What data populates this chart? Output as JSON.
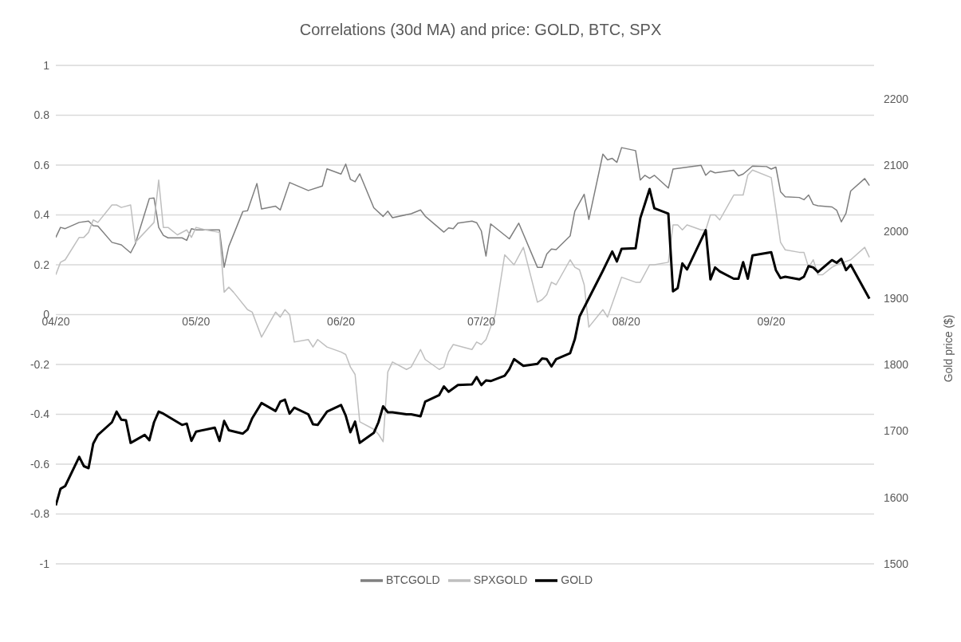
{
  "chart_data": {
    "type": "line",
    "title": "Correlations (30d MA) and price: GOLD, BTC, SPX",
    "y2label": "Gold price ($)",
    "xlim": [
      "2020-04-01",
      "2020-09-23"
    ],
    "xticks": [
      {
        "value": "2020-04-01",
        "label": "04/20"
      },
      {
        "value": "2020-05-01",
        "label": "05/20"
      },
      {
        "value": "2020-06-01",
        "label": "06/20"
      },
      {
        "value": "2020-07-01",
        "label": "07/20"
      },
      {
        "value": "2020-08-01",
        "label": "08/20"
      },
      {
        "value": "2020-09-01",
        "label": "09/20"
      }
    ],
    "ylim": [
      -1,
      1
    ],
    "yticks": [
      -1,
      -0.8,
      -0.6,
      -0.4,
      -0.2,
      0,
      0.2,
      0.4,
      0.6,
      0.8,
      1
    ],
    "y2lim": [
      1500,
      2250
    ],
    "y2ticks": [
      1500,
      1600,
      1700,
      1800,
      1900,
      2000,
      2100,
      2200
    ],
    "grid": "y",
    "legend": "bottom",
    "marker": "none",
    "line_style": "solid",
    "series": [
      {
        "name": "BTCGOLD",
        "color": "#7f7f7f",
        "x": [
          "2020-04-01",
          "2020-04-02",
          "2020-04-03",
          "2020-04-06",
          "2020-04-08",
          "2020-04-09",
          "2020-04-10",
          "2020-04-13",
          "2020-04-15",
          "2020-04-17",
          "2020-04-18",
          "2020-04-21",
          "2020-04-22",
          "2020-04-23",
          "2020-04-24",
          "2020-04-25",
          "2020-04-28",
          "2020-04-29",
          "2020-04-30",
          "2020-05-01",
          "2020-05-06",
          "2020-05-07",
          "2020-05-08",
          "2020-05-11",
          "2020-05-12",
          "2020-05-14",
          "2020-05-15",
          "2020-05-18",
          "2020-05-19",
          "2020-05-21",
          "2020-05-25",
          "2020-05-28",
          "2020-05-29",
          "2020-06-01",
          "2020-06-02",
          "2020-06-03",
          "2020-06-04",
          "2020-06-05",
          "2020-06-08",
          "2020-06-10",
          "2020-06-11",
          "2020-06-12",
          "2020-06-16",
          "2020-06-18",
          "2020-06-19",
          "2020-06-23",
          "2020-06-24",
          "2020-06-25",
          "2020-06-26",
          "2020-06-29",
          "2020-06-30",
          "2020-07-01",
          "2020-07-02",
          "2020-07-03",
          "2020-07-07",
          "2020-07-09",
          "2020-07-13",
          "2020-07-14",
          "2020-07-15",
          "2020-07-16",
          "2020-07-17",
          "2020-07-20",
          "2020-07-21",
          "2020-07-23",
          "2020-07-24",
          "2020-07-27",
          "2020-07-28",
          "2020-07-29",
          "2020-07-30",
          "2020-07-31",
          "2020-08-03",
          "2020-08-04",
          "2020-08-05",
          "2020-08-06",
          "2020-08-07",
          "2020-08-10",
          "2020-08-11",
          "2020-08-17",
          "2020-08-18",
          "2020-08-19",
          "2020-08-20",
          "2020-08-24",
          "2020-08-25",
          "2020-08-26",
          "2020-08-28",
          "2020-08-31",
          "2020-09-01",
          "2020-09-02",
          "2020-09-03",
          "2020-09-04",
          "2020-09-07",
          "2020-09-08",
          "2020-09-09",
          "2020-09-10",
          "2020-09-11",
          "2020-09-14",
          "2020-09-15",
          "2020-09-16",
          "2020-09-17",
          "2020-09-18",
          "2020-09-21",
          "2020-09-22"
        ],
        "values": [
          0.31,
          0.35,
          0.345,
          0.37,
          0.375,
          0.357,
          0.355,
          0.29,
          0.28,
          0.248,
          0.284,
          0.466,
          0.468,
          0.35,
          0.318,
          0.308,
          0.308,
          0.298,
          0.345,
          0.34,
          0.34,
          0.19,
          0.274,
          0.414,
          0.417,
          0.526,
          0.424,
          0.435,
          0.42,
          0.53,
          0.498,
          0.516,
          0.585,
          0.564,
          0.604,
          0.543,
          0.533,
          0.565,
          0.429,
          0.394,
          0.415,
          0.389,
          0.405,
          0.42,
          0.395,
          0.331,
          0.348,
          0.345,
          0.367,
          0.375,
          0.369,
          0.336,
          0.235,
          0.364,
          0.304,
          0.367,
          0.19,
          0.19,
          0.243,
          0.263,
          0.261,
          0.316,
          0.415,
          0.483,
          0.382,
          0.644,
          0.621,
          0.627,
          0.611,
          0.67,
          0.658,
          0.54,
          0.559,
          0.547,
          0.559,
          0.508,
          0.584,
          0.599,
          0.559,
          0.577,
          0.569,
          0.579,
          0.557,
          0.564,
          0.596,
          0.594,
          0.584,
          0.592,
          0.493,
          0.473,
          0.47,
          0.461,
          0.48,
          0.442,
          0.437,
          0.432,
          0.419,
          0.372,
          0.407,
          0.496,
          0.546,
          0.518
        ]
      },
      {
        "name": "SPXGOLD",
        "color": "#bfbfbf",
        "x": [
          "2020-04-01",
          "2020-04-02",
          "2020-04-03",
          "2020-04-06",
          "2020-04-07",
          "2020-04-08",
          "2020-04-09",
          "2020-04-10",
          "2020-04-13",
          "2020-04-14",
          "2020-04-15",
          "2020-04-17",
          "2020-04-18",
          "2020-04-22",
          "2020-04-23",
          "2020-04-24",
          "2020-04-25",
          "2020-04-27",
          "2020-04-29",
          "2020-04-30",
          "2020-05-01",
          "2020-05-03",
          "2020-05-06",
          "2020-05-07",
          "2020-05-08",
          "2020-05-09",
          "2020-05-12",
          "2020-05-13",
          "2020-05-15",
          "2020-05-18",
          "2020-05-19",
          "2020-05-20",
          "2020-05-21",
          "2020-05-22",
          "2020-05-25",
          "2020-05-26",
          "2020-05-27",
          "2020-05-29",
          "2020-06-01",
          "2020-06-02",
          "2020-06-03",
          "2020-06-04",
          "2020-06-05",
          "2020-06-08",
          "2020-06-09",
          "2020-06-10",
          "2020-06-11",
          "2020-06-12",
          "2020-06-15",
          "2020-06-16",
          "2020-06-18",
          "2020-06-19",
          "2020-06-22",
          "2020-06-23",
          "2020-06-24",
          "2020-06-25",
          "2020-06-29",
          "2020-06-30",
          "2020-07-01",
          "2020-07-02",
          "2020-07-04",
          "2020-07-06",
          "2020-07-08",
          "2020-07-10",
          "2020-07-13",
          "2020-07-14",
          "2020-07-15",
          "2020-07-16",
          "2020-07-17",
          "2020-07-20",
          "2020-07-21",
          "2020-07-22",
          "2020-07-23",
          "2020-07-24",
          "2020-07-27",
          "2020-07-28",
          "2020-07-31",
          "2020-08-03",
          "2020-08-04",
          "2020-08-06",
          "2020-08-07",
          "2020-08-10",
          "2020-08-11",
          "2020-08-12",
          "2020-08-13",
          "2020-08-14",
          "2020-08-17",
          "2020-08-18",
          "2020-08-19",
          "2020-08-20",
          "2020-08-21",
          "2020-08-24",
          "2020-08-26",
          "2020-08-27",
          "2020-08-28",
          "2020-09-01",
          "2020-09-03",
          "2020-09-04",
          "2020-09-07",
          "2020-09-08",
          "2020-09-09",
          "2020-09-10",
          "2020-09-11",
          "2020-09-12",
          "2020-09-14",
          "2020-09-15",
          "2020-09-18",
          "2020-09-21",
          "2020-09-22"
        ],
        "values": [
          0.16,
          0.21,
          0.22,
          0.31,
          0.31,
          0.33,
          0.38,
          0.37,
          0.44,
          0.44,
          0.43,
          0.44,
          0.29,
          0.37,
          0.54,
          0.35,
          0.35,
          0.32,
          0.34,
          0.31,
          0.35,
          0.34,
          0.33,
          0.09,
          0.11,
          0.09,
          0.02,
          0.01,
          -0.09,
          0.01,
          -0.01,
          0.02,
          0.0,
          -0.11,
          -0.1,
          -0.13,
          -0.1,
          -0.13,
          -0.15,
          -0.16,
          -0.21,
          -0.24,
          -0.43,
          -0.46,
          -0.48,
          -0.51,
          -0.23,
          -0.19,
          -0.22,
          -0.21,
          -0.14,
          -0.18,
          -0.22,
          -0.21,
          -0.15,
          -0.12,
          -0.14,
          -0.11,
          -0.12,
          -0.1,
          0.0,
          0.24,
          0.2,
          0.27,
          0.05,
          0.06,
          0.08,
          0.13,
          0.12,
          0.22,
          0.19,
          0.18,
          0.12,
          -0.05,
          0.02,
          -0.01,
          0.15,
          0.13,
          0.13,
          0.2,
          0.2,
          0.21,
          0.36,
          0.36,
          0.34,
          0.36,
          0.34,
          0.34,
          0.4,
          0.4,
          0.38,
          0.48,
          0.48,
          0.56,
          0.58,
          0.55,
          0.29,
          0.26,
          0.25,
          0.25,
          0.19,
          0.22,
          0.16,
          0.16,
          0.19,
          0.2,
          0.22,
          0.27,
          0.23
        ]
      },
      {
        "name": "GOLD",
        "color": "#000000",
        "axis": "y2",
        "x": [
          "2020-04-01",
          "2020-04-02",
          "2020-04-03",
          "2020-04-06",
          "2020-04-07",
          "2020-04-08",
          "2020-04-09",
          "2020-04-10",
          "2020-04-13",
          "2020-04-14",
          "2020-04-15",
          "2020-04-16",
          "2020-04-17",
          "2020-04-20",
          "2020-04-21",
          "2020-04-22",
          "2020-04-23",
          "2020-04-24",
          "2020-04-28",
          "2020-04-29",
          "2020-04-30",
          "2020-05-01",
          "2020-05-05",
          "2020-05-06",
          "2020-05-07",
          "2020-05-08",
          "2020-05-11",
          "2020-05-12",
          "2020-05-13",
          "2020-05-15",
          "2020-05-18",
          "2020-05-19",
          "2020-05-20",
          "2020-05-21",
          "2020-05-22",
          "2020-05-25",
          "2020-05-26",
          "2020-05-27",
          "2020-05-29",
          "2020-06-01",
          "2020-06-02",
          "2020-06-03",
          "2020-06-04",
          "2020-06-05",
          "2020-06-08",
          "2020-06-09",
          "2020-06-10",
          "2020-06-11",
          "2020-06-12",
          "2020-06-15",
          "2020-06-16",
          "2020-06-18",
          "2020-06-19",
          "2020-06-22",
          "2020-06-23",
          "2020-06-24",
          "2020-06-25",
          "2020-06-26",
          "2020-06-29",
          "2020-06-30",
          "2020-07-01",
          "2020-07-02",
          "2020-07-03",
          "2020-07-06",
          "2020-07-07",
          "2020-07-08",
          "2020-07-10",
          "2020-07-13",
          "2020-07-14",
          "2020-07-15",
          "2020-07-16",
          "2020-07-17",
          "2020-07-20",
          "2020-07-21",
          "2020-07-22",
          "2020-07-27",
          "2020-07-29",
          "2020-07-30",
          "2020-07-31",
          "2020-08-03",
          "2020-08-04",
          "2020-08-06",
          "2020-08-07",
          "2020-08-10",
          "2020-08-11",
          "2020-08-12",
          "2020-08-13",
          "2020-08-14",
          "2020-08-18",
          "2020-08-19",
          "2020-08-20",
          "2020-08-21",
          "2020-08-24",
          "2020-08-25",
          "2020-08-26",
          "2020-08-27",
          "2020-08-28",
          "2020-09-01",
          "2020-09-02",
          "2020-09-03",
          "2020-09-04",
          "2020-09-07",
          "2020-09-08",
          "2020-09-09",
          "2020-09-10",
          "2020-09-11",
          "2020-09-14",
          "2020-09-15",
          "2020-09-16",
          "2020-09-17",
          "2020-09-18",
          "2020-09-22"
        ],
        "values": [
          1588,
          1613,
          1617,
          1661,
          1647,
          1644,
          1681,
          1694,
          1713,
          1729,
          1717,
          1716,
          1682,
          1694,
          1686,
          1713,
          1729,
          1726,
          1709,
          1711,
          1685,
          1699,
          1705,
          1685,
          1715,
          1701,
          1696,
          1702,
          1719,
          1742,
          1730,
          1744,
          1747,
          1726,
          1735,
          1725,
          1710,
          1709,
          1729,
          1739,
          1723,
          1698,
          1714,
          1682,
          1697,
          1713,
          1737,
          1728,
          1728,
          1725,
          1725,
          1722,
          1744,
          1754,
          1767,
          1759,
          1764,
          1769,
          1770,
          1781,
          1769,
          1776,
          1775,
          1783,
          1793,
          1808,
          1798,
          1801,
          1809,
          1808,
          1797,
          1808,
          1817,
          1838,
          1872,
          1941,
          1970,
          1955,
          1974,
          1975,
          2020,
          2064,
          2035,
          2027,
          1910,
          1915,
          1952,
          1943,
          2002,
          1928,
          1946,
          1940,
          1929,
          1929,
          1954,
          1929,
          1964,
          1969,
          1942,
          1930,
          1932,
          1928,
          1932,
          1948,
          1946,
          1939,
          1957,
          1953,
          1959,
          1942,
          1950,
          1899
        ]
      }
    ]
  }
}
